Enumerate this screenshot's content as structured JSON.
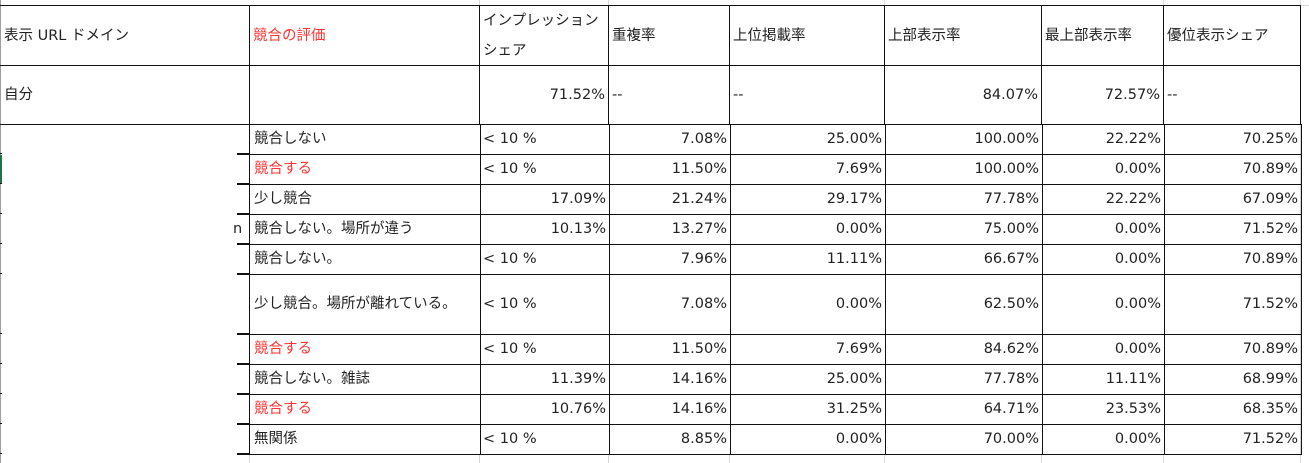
{
  "header": {
    "domain_label": "表示 URL ドメイン",
    "evaluation_label": "競合の評価",
    "impression_share_label": "インプレッション シェア",
    "overlap_rate_label": "重複率",
    "position_above_rate_label": "上位掲載率",
    "top_of_page_rate_label": "上部表示率",
    "abs_top_of_page_rate_label": "最上部表示率",
    "outranking_share_label": "優位表示シェア"
  },
  "self_row": {
    "domain": "自分",
    "evaluation": "",
    "impression_share": "71.52%",
    "overlap_rate": "--",
    "position_above_rate": "--",
    "top_of_page_rate": "84.07%",
    "abs_top_of_page_rate": "72.57%",
    "outranking_share": "--"
  },
  "colors": {
    "accent_red": "#ff3333",
    "border": "#111111",
    "gridline": "#d8d8d8",
    "selection": "#217346"
  },
  "spill_text": "n",
  "rows": [
    {
      "evaluation": "競合しない",
      "eval_red": false,
      "impression_share": "< 10 %",
      "overlap_rate": "7.08%",
      "position_above_rate": "25.00%",
      "top_of_page_rate": "100.00%",
      "abs_top_of_page_rate": "22.22%",
      "outranking_share": "70.25%"
    },
    {
      "evaluation": "競合する",
      "eval_red": true,
      "impression_share": "< 10 %",
      "overlap_rate": "11.50%",
      "position_above_rate": "7.69%",
      "top_of_page_rate": "100.00%",
      "abs_top_of_page_rate": "0.00%",
      "outranking_share": "70.89%"
    },
    {
      "evaluation": "少し競合",
      "eval_red": false,
      "impression_share": "17.09%",
      "overlap_rate": "21.24%",
      "position_above_rate": "29.17%",
      "top_of_page_rate": "77.78%",
      "abs_top_of_page_rate": "22.22%",
      "outranking_share": "67.09%"
    },
    {
      "evaluation": "競合しない。場所が違う",
      "eval_red": false,
      "impression_share": "10.13%",
      "overlap_rate": "13.27%",
      "position_above_rate": "0.00%",
      "top_of_page_rate": "75.00%",
      "abs_top_of_page_rate": "0.00%",
      "outranking_share": "71.52%"
    },
    {
      "evaluation": "競合しない。",
      "eval_red": false,
      "impression_share": "< 10 %",
      "overlap_rate": "7.96%",
      "position_above_rate": "11.11%",
      "top_of_page_rate": "66.67%",
      "abs_top_of_page_rate": "0.00%",
      "outranking_share": "70.89%"
    },
    {
      "evaluation": "少し競合。場所が離れている。",
      "eval_red": false,
      "impression_share": "< 10 %",
      "overlap_rate": "7.08%",
      "position_above_rate": "0.00%",
      "top_of_page_rate": "62.50%",
      "abs_top_of_page_rate": "0.00%",
      "outranking_share": "71.52%"
    },
    {
      "evaluation": "競合する",
      "eval_red": true,
      "impression_share": "< 10 %",
      "overlap_rate": "11.50%",
      "position_above_rate": "7.69%",
      "top_of_page_rate": "84.62%",
      "abs_top_of_page_rate": "0.00%",
      "outranking_share": "70.89%"
    },
    {
      "evaluation": "競合しない。雑誌",
      "eval_red": false,
      "impression_share": "11.39%",
      "overlap_rate": "14.16%",
      "position_above_rate": "25.00%",
      "top_of_page_rate": "77.78%",
      "abs_top_of_page_rate": "11.11%",
      "outranking_share": "68.99%"
    },
    {
      "evaluation": "競合する",
      "eval_red": true,
      "impression_share": "10.76%",
      "overlap_rate": "14.16%",
      "position_above_rate": "31.25%",
      "top_of_page_rate": "64.71%",
      "abs_top_of_page_rate": "23.53%",
      "outranking_share": "68.35%"
    },
    {
      "evaluation": "無関係",
      "eval_red": false,
      "impression_share": "< 10 %",
      "overlap_rate": "8.85%",
      "position_above_rate": "0.00%",
      "top_of_page_rate": "70.00%",
      "abs_top_of_page_rate": "0.00%",
      "outranking_share": "71.52%"
    }
  ]
}
